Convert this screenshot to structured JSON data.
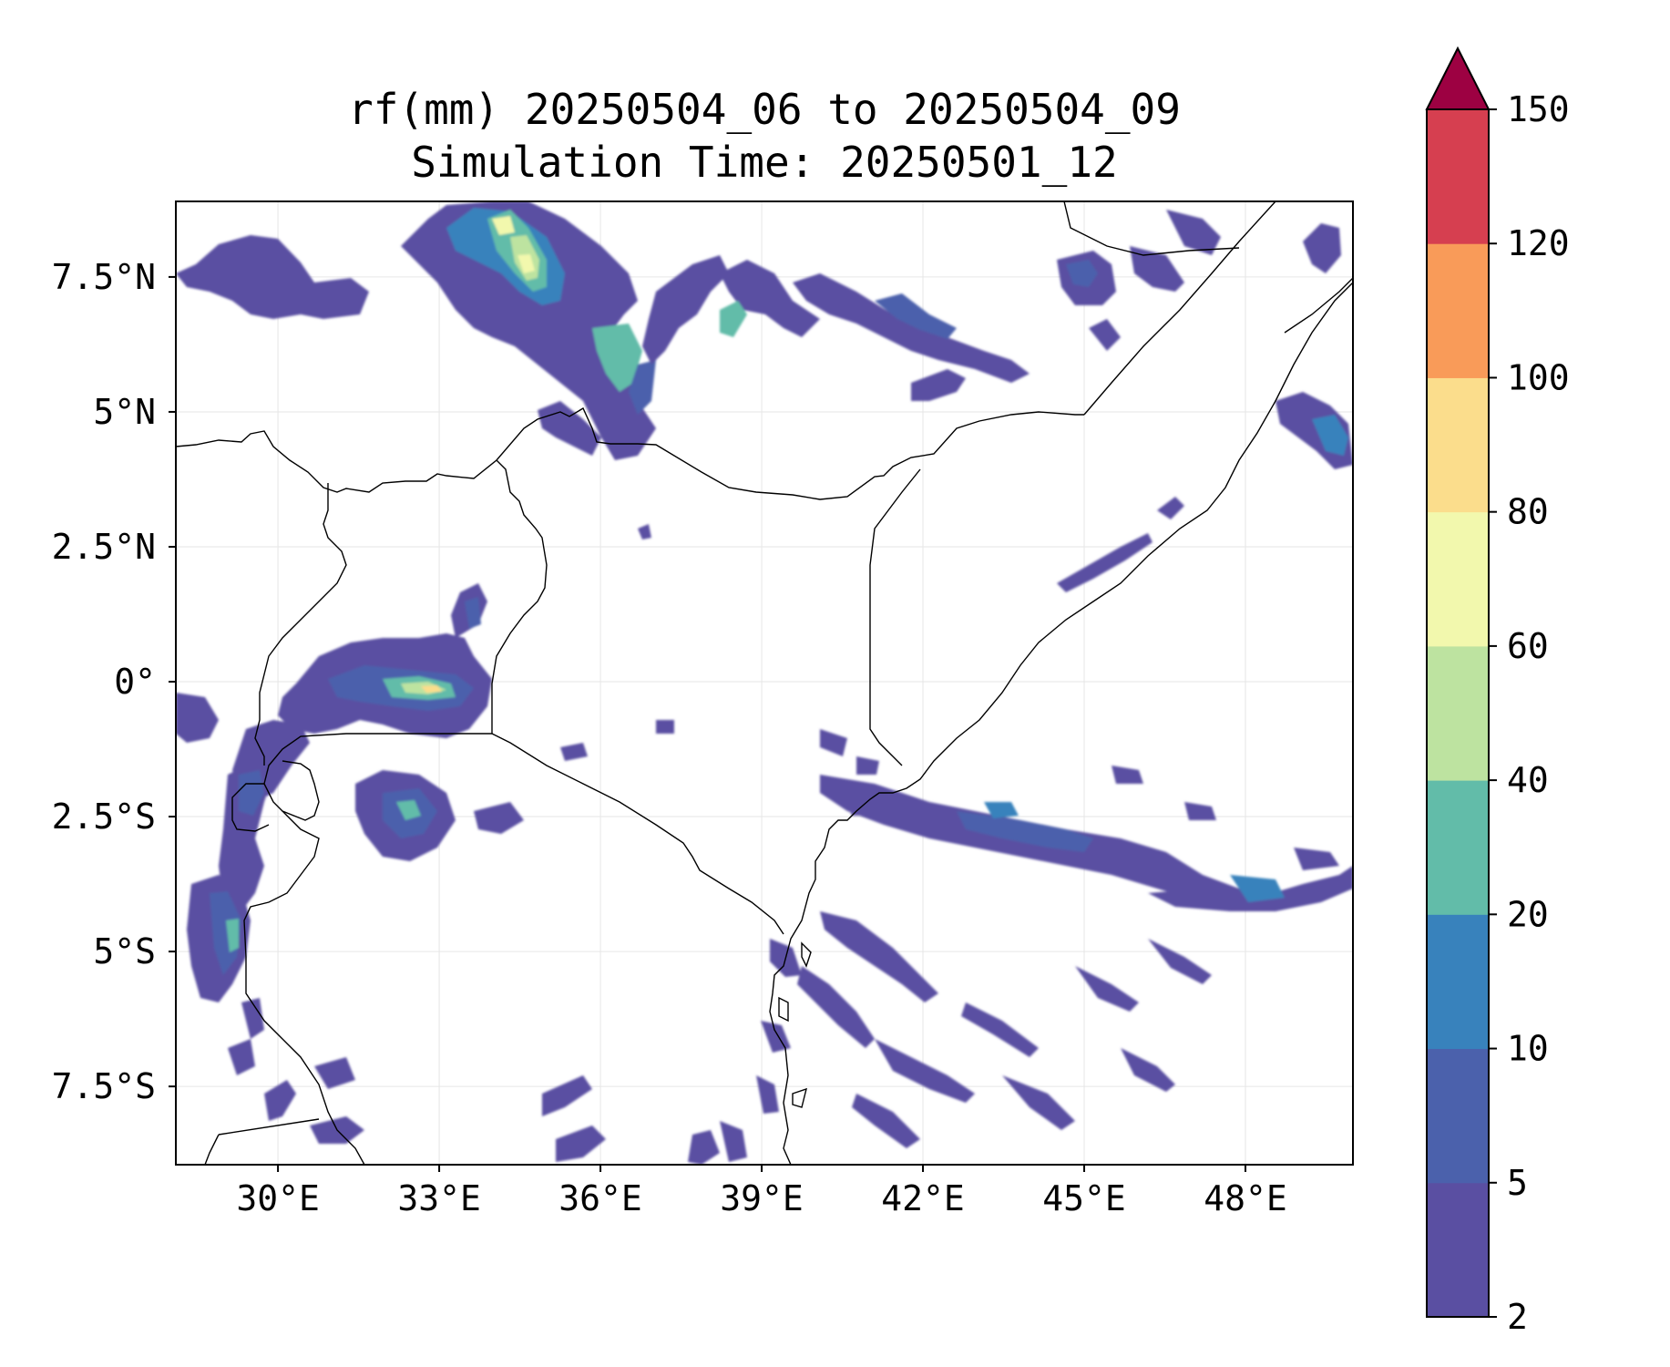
{
  "title": {
    "line1": "rf(mm) 20250504_06 to 20250504_09",
    "line2": "Simulation Time: 20250501_12"
  },
  "map": {
    "x_ticks": [
      "30°E",
      "33°E",
      "36°E",
      "39°E",
      "42°E",
      "45°E",
      "48°E"
    ],
    "y_ticks": [
      "7.5°N",
      "5°N",
      "2.5°N",
      "0°",
      "2.5°S",
      "5°S",
      "7.5°S"
    ],
    "lon_range": [
      28.1,
      50.0
    ],
    "lat_range": [
      -8.95,
      8.9
    ],
    "gridlines": true
  },
  "colorbar": {
    "ticks": [
      "2",
      "5",
      "10",
      "20",
      "40",
      "60",
      "80",
      "100",
      "120",
      "150"
    ],
    "extend": "max",
    "colors": [
      "#5a4fa2",
      "#4b61ac",
      "#3882bc",
      "#62bca9",
      "#bde3a0",
      "#f2f8ad",
      "#fbdd8c",
      "#f99b59",
      "#d63f50",
      "#9d0142"
    ]
  },
  "chart_data": {
    "type": "heatmap",
    "title": "rf(mm) 20250504_06 to 20250504_09",
    "subtitle": "Simulation Time: 20250501_12",
    "xlabel": "",
    "ylabel": "",
    "xlim": [
      28.1,
      50.0
    ],
    "ylim": [
      -8.95,
      8.9
    ],
    "x_ticks": [
      30,
      33,
      36,
      39,
      42,
      45,
      48
    ],
    "y_ticks": [
      7.5,
      5,
      2.5,
      0,
      -2.5,
      -5,
      -7.5
    ],
    "levels": [
      2,
      5,
      10,
      20,
      40,
      60,
      80,
      100,
      120,
      150
    ],
    "grid": true,
    "rain_cells": [
      {
        "lon": 30.3,
        "lat": 7.2,
        "value": 4
      },
      {
        "lon": 32.0,
        "lat": 6.9,
        "value": 4
      },
      {
        "lon": 34.6,
        "lat": 7.6,
        "value": 30
      },
      {
        "lon": 34.4,
        "lat": 8.3,
        "value": 70
      },
      {
        "lon": 35.2,
        "lat": 7.1,
        "value": 15
      },
      {
        "lon": 36.0,
        "lat": 5.6,
        "value": 12
      },
      {
        "lon": 38.0,
        "lat": 6.0,
        "value": 8
      },
      {
        "lon": 40.0,
        "lat": 6.4,
        "value": 5
      },
      {
        "lon": 42.0,
        "lat": 6.2,
        "value": 6
      },
      {
        "lon": 43.7,
        "lat": 5.7,
        "value": 6
      },
      {
        "lon": 45.6,
        "lat": 7.4,
        "value": 6
      },
      {
        "lon": 47.0,
        "lat": 7.5,
        "value": 4
      },
      {
        "lon": 49.3,
        "lat": 4.6,
        "value": 10
      },
      {
        "lon": 32.8,
        "lat": 0.1,
        "value": 45
      },
      {
        "lon": 33.0,
        "lat": 0.1,
        "value": 75
      },
      {
        "lon": 31.3,
        "lat": -0.2,
        "value": 6
      },
      {
        "lon": 29.3,
        "lat": -1.6,
        "value": 6
      },
      {
        "lon": 32.8,
        "lat": -2.5,
        "value": 25
      },
      {
        "lon": 29.2,
        "lat": -3.5,
        "value": 8
      },
      {
        "lon": 29.2,
        "lat": -5.0,
        "value": 40
      },
      {
        "lon": 29.1,
        "lat": -7.0,
        "value": 5
      },
      {
        "lon": 43.0,
        "lat": -3.0,
        "value": 6
      },
      {
        "lon": 45.0,
        "lat": -3.3,
        "value": 8
      },
      {
        "lon": 47.5,
        "lat": -4.1,
        "value": 8
      },
      {
        "lon": 41.5,
        "lat": -6.8,
        "value": 6
      },
      {
        "lon": 44.0,
        "lat": -7.5,
        "value": 4
      },
      {
        "lon": 35.5,
        "lat": -8.3,
        "value": 4
      },
      {
        "lon": 32.0,
        "lat": -7.8,
        "value": 4
      }
    ]
  }
}
